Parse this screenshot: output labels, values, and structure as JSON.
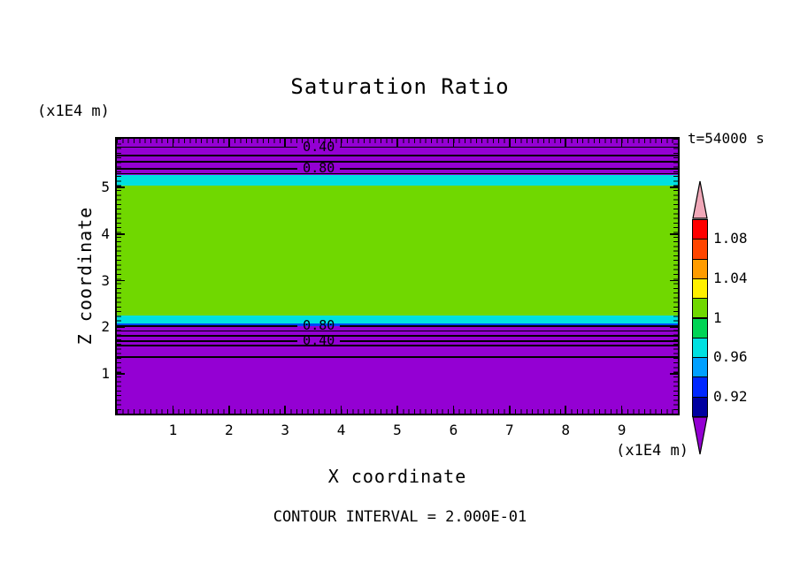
{
  "figure": {
    "title": "Saturation Ratio",
    "time_label": "t=54000 s",
    "contour_note": "CONTOUR INTERVAL = 2.000E-01"
  },
  "axes": {
    "x_title": "X coordinate",
    "y_title": "Z coordinate",
    "x_units_label": "(x1E4 m)",
    "y_units_label": "(x1E4 m)"
  },
  "chart_data": {
    "type": "heatmap",
    "variant": "filled-contour-plot",
    "title": "Saturation Ratio",
    "xlabel": "X coordinate",
    "ylabel": "Z coordinate",
    "x_units_label": "(x1E4 m)",
    "y_units_label": "(x1E4 m)",
    "time_label": "t=54000 s",
    "contour_interval": 0.2,
    "contour_note": "CONTOUR INTERVAL = 2.000E-01",
    "xlim": [
      0,
      10
    ],
    "ylim": [
      0.15,
      6.05
    ],
    "x_ticks": [
      1,
      2,
      3,
      4,
      5,
      6,
      7,
      8,
      9
    ],
    "y_ticks": [
      1,
      2,
      3,
      4,
      5
    ],
    "grid": false,
    "legend_position": "right-colorbar",
    "fill_bands": [
      {
        "z_top": 6.05,
        "z_bottom": 5.27,
        "value_range": "saturation < 0.92",
        "color": "#9400D3"
      },
      {
        "z_top": 5.27,
        "z_bottom": 5.04,
        "value_range": "0.96 - 0.98",
        "color": "#00E0E0"
      },
      {
        "z_top": 5.04,
        "z_bottom": 2.25,
        "value_range": "~1.00",
        "color": "#70D800"
      },
      {
        "z_top": 2.25,
        "z_bottom": 2.08,
        "value_range": "0.96 - 0.98",
        "color": "#00E0E0"
      },
      {
        "z_top": 2.08,
        "z_bottom": 2.02,
        "value_range": "0.92 - 0.96",
        "color": "#0046FF"
      },
      {
        "z_top": 2.02,
        "z_bottom": 0.15,
        "value_range": "saturation < 0.92",
        "color": "#9400D3"
      }
    ],
    "contour_lines": [
      {
        "z": 5.88,
        "label": "0.40",
        "label_x": 3.6
      },
      {
        "z": 5.7
      },
      {
        "z": 5.56
      },
      {
        "z": 5.41,
        "label": "0.80",
        "label_x": 3.6
      },
      {
        "z": 5.31
      },
      {
        "z": 2.04,
        "label": "0.80",
        "label_x": 3.6
      },
      {
        "z": 1.93
      },
      {
        "z": 1.83
      },
      {
        "z": 1.72,
        "label": "0.40",
        "label_x": 3.6
      },
      {
        "z": 1.62
      },
      {
        "z": 1.37
      }
    ],
    "colorbar": {
      "tick_labels": [
        "1.08",
        "1.04",
        "1",
        "0.96",
        "0.92"
      ],
      "band_colors_top_to_bottom": [
        "#FF0000",
        "#FF4600",
        "#FF9C00",
        "#FFF000",
        "#70D800",
        "#00D455",
        "#00E0E0",
        "#00A0FF",
        "#0028FF",
        "#0000A0"
      ],
      "over_arrow_color": "#F0A8B8",
      "under_arrow_color": "#9400D3"
    }
  }
}
